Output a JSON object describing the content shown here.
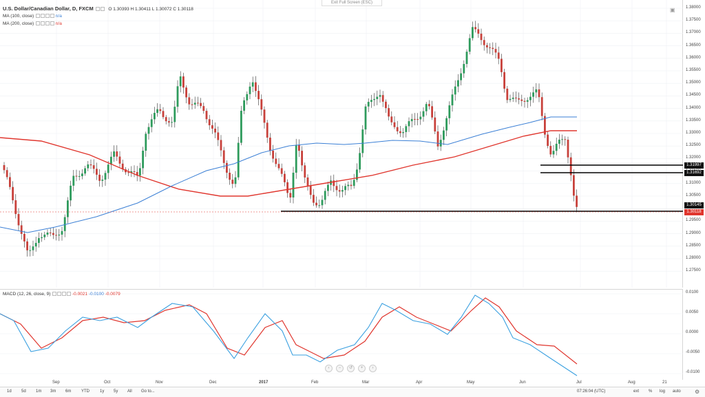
{
  "window": {
    "exit_fullscreen": "Exit Full Screen (ESC)"
  },
  "legend": {
    "symbol": "U.S. Dollar/Canadian Dollar, D, FXCM",
    "ohlc": "O 1.30393  H 1.30411  L 1.30072  C 1.30118",
    "ma100_label": "MA (100, close)",
    "ma100_value": "n/a",
    "ma200_label": "MA (200, close)",
    "ma200_value": "n/a",
    "macd_label": "MACD (12, 26, close, 9)",
    "macd_v1": "-0.0021",
    "macd_v2": "-0.0100",
    "macd_v3": "-0.0079"
  },
  "price_axis": {
    "labels": [
      "1.38000",
      "1.37500",
      "1.37000",
      "1.36500",
      "1.36000",
      "1.35500",
      "1.35000",
      "1.34500",
      "1.34000",
      "1.33500",
      "1.33000",
      "1.32500",
      "1.32000",
      "1.31500",
      "1.31000",
      "1.30500",
      "1.30000",
      "1.29500",
      "1.29000",
      "1.28500",
      "1.28000",
      "1.27500"
    ],
    "tags": [
      {
        "value": "1.31997",
        "color": "black"
      },
      {
        "value": "1.31692",
        "color": "black"
      },
      {
        "value": "1.30145",
        "color": "black"
      },
      {
        "value": "1.30118",
        "color": "red"
      }
    ]
  },
  "macd_axis": {
    "labels": [
      "0.0100",
      "0.0050",
      "0.0000",
      "-0.0050",
      "-0.0100"
    ]
  },
  "time_axis": {
    "labels": [
      "Sep",
      "Oct",
      "Nov",
      "Dec",
      "2017",
      "Feb",
      "Mar",
      "Apr",
      "May",
      "Jun",
      "Jul",
      "Aug",
      "21"
    ]
  },
  "toolbar": {
    "ranges": [
      "1d",
      "5d",
      "1m",
      "3m",
      "6m",
      "YTD",
      "1y",
      "5y",
      "All",
      "Go to..."
    ],
    "time": "07:26:04 (UTC)",
    "ext": "ext",
    "percent": "%",
    "log": "log",
    "auto": "auto"
  },
  "colors": {
    "ma100": "#3a7fd5",
    "ma200": "#e0362e",
    "up": "#2e9b5c",
    "down": "#c8413b",
    "macd": "#3aa0e0",
    "signal": "#e0362e"
  }
}
